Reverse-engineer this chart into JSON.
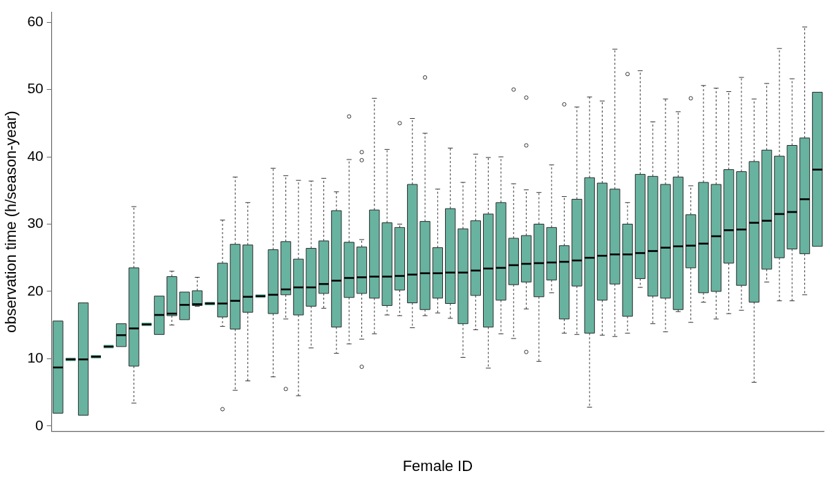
{
  "chart_data": {
    "type": "box",
    "xlabel": "Female ID",
    "ylabel": "observation time (h/season-year)",
    "color": "#67b3a0",
    "tick_labels": "y",
    "ylim": [
      -0.8,
      61.5
    ],
    "yticks": [
      0,
      10,
      20,
      30,
      40,
      50,
      60
    ],
    "categories": [
      null,
      null,
      null,
      null,
      null,
      null,
      null,
      null,
      null,
      null,
      null,
      null,
      null,
      null,
      null,
      null,
      null,
      null,
      null,
      null,
      null,
      null,
      null,
      null,
      null,
      null,
      null,
      null,
      null,
      null,
      null,
      null,
      null,
      null,
      null,
      null,
      null,
      null,
      null,
      null,
      null,
      null,
      null,
      null,
      null,
      null,
      null,
      null,
      null,
      null,
      null,
      null,
      null,
      null,
      null,
      null,
      null,
      null,
      null,
      null,
      null
    ],
    "boxes": [
      {
        "low": 1.9,
        "q1": 1.9,
        "median": 8.7,
        "q3": 15.6,
        "high": 15.6
      },
      {
        "low": 9.9,
        "q1": 9.9,
        "median": 9.9,
        "q3": 9.9,
        "high": 9.9
      },
      {
        "low": 1.6,
        "q1": 1.6,
        "median": 9.9,
        "q3": 18.3,
        "high": 18.3
      },
      {
        "low": 10.3,
        "q1": 10.3,
        "median": 10.3,
        "q3": 10.3,
        "high": 10.3
      },
      {
        "low": 11.8,
        "q1": 11.8,
        "median": 11.8,
        "q3": 11.8,
        "high": 11.8
      },
      {
        "low": 11.8,
        "q1": 11.8,
        "median": 13.5,
        "q3": 15.2,
        "high": 15.2
      },
      {
        "low": 3.4,
        "q1": 8.9,
        "median": 14.5,
        "q3": 23.5,
        "high": 32.6
      },
      {
        "low": 15.1,
        "q1": 15.1,
        "median": 15.1,
        "q3": 15.1,
        "high": 15.1
      },
      {
        "low": 13.6,
        "q1": 13.6,
        "median": 16.5,
        "q3": 19.3,
        "high": 19.3
      },
      {
        "low": 15.0,
        "q1": 16.4,
        "median": 16.7,
        "q3": 22.2,
        "high": 23.0
      },
      {
        "low": 15.8,
        "q1": 15.8,
        "median": 18.0,
        "q3": 19.9,
        "high": 19.9
      },
      {
        "low": 17.8,
        "q1": 17.9,
        "median": 18.1,
        "q3": 20.1,
        "high": 22.1
      },
      {
        "low": 18.2,
        "q1": 18.2,
        "median": 18.2,
        "q3": 18.2,
        "high": 18.2
      },
      {
        "low": 14.8,
        "q1": 16.2,
        "median": 18.2,
        "q3": 24.2,
        "high": 30.6,
        "outliers": [
          2.5
        ]
      },
      {
        "low": 5.3,
        "q1": 14.4,
        "median": 18.6,
        "q3": 27.0,
        "high": 37.0
      },
      {
        "low": 6.7,
        "q1": 16.9,
        "median": 19.2,
        "q3": 26.9,
        "high": 33.2
      },
      {
        "low": 19.3,
        "q1": 19.3,
        "median": 19.3,
        "q3": 19.3,
        "high": 19.3
      },
      {
        "low": 7.3,
        "q1": 16.7,
        "median": 19.5,
        "q3": 26.2,
        "high": 38.3
      },
      {
        "low": 15.9,
        "q1": 19.5,
        "median": 20.3,
        "q3": 27.4,
        "high": 37.2,
        "outliers": [
          5.5
        ]
      },
      {
        "low": 4.5,
        "q1": 16.5,
        "median": 20.6,
        "q3": 24.8,
        "high": 36.5
      },
      {
        "low": 11.6,
        "q1": 17.8,
        "median": 20.6,
        "q3": 26.4,
        "high": 36.4
      },
      {
        "low": 17.5,
        "q1": 19.7,
        "median": 21.1,
        "q3": 27.5,
        "high": 36.8
      },
      {
        "low": 10.8,
        "q1": 14.7,
        "median": 21.6,
        "q3": 32.0,
        "high": 34.8
      },
      {
        "low": 12.2,
        "q1": 19.1,
        "median": 22.0,
        "q3": 27.3,
        "high": 39.6,
        "outliers": [
          46.0
        ]
      },
      {
        "low": 12.9,
        "q1": 19.7,
        "median": 22.1,
        "q3": 26.6,
        "high": 27.7,
        "outliers": [
          40.7,
          39.5,
          8.8
        ]
      },
      {
        "low": 13.7,
        "q1": 19.0,
        "median": 22.2,
        "q3": 32.1,
        "high": 48.7
      },
      {
        "low": 16.5,
        "q1": 17.9,
        "median": 22.2,
        "q3": 30.2,
        "high": 41.1
      },
      {
        "low": 16.4,
        "q1": 20.2,
        "median": 22.3,
        "q3": 29.5,
        "high": 30.0,
        "outliers": [
          45.0
        ]
      },
      {
        "low": 14.6,
        "q1": 18.3,
        "median": 22.5,
        "q3": 35.9,
        "high": 45.7
      },
      {
        "low": 16.4,
        "q1": 17.3,
        "median": 22.7,
        "q3": 30.4,
        "high": 43.5,
        "outliers": [
          51.8
        ]
      },
      {
        "low": 16.8,
        "q1": 19.0,
        "median": 22.7,
        "q3": 26.5,
        "high": 35.2
      },
      {
        "low": 16.0,
        "q1": 18.2,
        "median": 22.8,
        "q3": 32.3,
        "high": 41.3
      },
      {
        "low": 10.2,
        "q1": 15.2,
        "median": 22.8,
        "q3": 29.3,
        "high": 36.2
      },
      {
        "low": 14.3,
        "q1": 19.4,
        "median": 23.1,
        "q3": 30.5,
        "high": 40.4
      },
      {
        "low": 8.6,
        "q1": 14.7,
        "median": 23.4,
        "q3": 31.5,
        "high": 39.9
      },
      {
        "low": 13.7,
        "q1": 18.7,
        "median": 23.5,
        "q3": 33.2,
        "high": 40.0
      },
      {
        "low": 13.0,
        "q1": 21.0,
        "median": 23.9,
        "q3": 27.9,
        "high": 36.0,
        "outliers": [
          50.0
        ]
      },
      {
        "low": 17.4,
        "q1": 21.4,
        "median": 24.1,
        "q3": 28.3,
        "high": 35.1,
        "outliers": [
          48.8,
          41.7,
          11.0
        ]
      },
      {
        "low": 9.6,
        "q1": 19.2,
        "median": 24.2,
        "q3": 30.0,
        "high": 34.7
      },
      {
        "low": 19.8,
        "q1": 21.7,
        "median": 24.3,
        "q3": 29.5,
        "high": 38.8
      },
      {
        "low": 13.8,
        "q1": 15.9,
        "median": 24.4,
        "q3": 26.8,
        "high": 34.1,
        "outliers": [
          47.8
        ]
      },
      {
        "low": 13.6,
        "q1": 20.8,
        "median": 24.6,
        "q3": 33.7,
        "high": 47.4
      },
      {
        "low": 2.8,
        "q1": 13.8,
        "median": 25.0,
        "q3": 36.9,
        "high": 48.9
      },
      {
        "low": 13.5,
        "q1": 18.7,
        "median": 25.3,
        "q3": 36.1,
        "high": 48.3
      },
      {
        "low": 13.3,
        "q1": 21.1,
        "median": 25.5,
        "q3": 35.2,
        "high": 56.0
      },
      {
        "low": 13.8,
        "q1": 16.3,
        "median": 25.5,
        "q3": 30.0,
        "high": 33.2,
        "outliers": [
          52.3
        ]
      },
      {
        "low": 20.6,
        "q1": 21.9,
        "median": 25.7,
        "q3": 37.4,
        "high": 52.8
      },
      {
        "low": 15.2,
        "q1": 19.3,
        "median": 26.0,
        "q3": 37.1,
        "high": 45.2
      },
      {
        "low": 14.0,
        "q1": 19.0,
        "median": 26.5,
        "q3": 35.9,
        "high": 48.6
      },
      {
        "low": 17.0,
        "q1": 17.3,
        "median": 26.7,
        "q3": 37.0,
        "high": 46.7
      },
      {
        "low": 15.4,
        "q1": 23.5,
        "median": 26.8,
        "q3": 31.4,
        "high": 35.7,
        "outliers": [
          48.7
        ]
      },
      {
        "low": 18.4,
        "q1": 19.8,
        "median": 27.1,
        "q3": 36.2,
        "high": 50.6
      },
      {
        "low": 15.9,
        "q1": 20.0,
        "median": 28.2,
        "q3": 35.9,
        "high": 50.2
      },
      {
        "low": 16.7,
        "q1": 24.2,
        "median": 29.1,
        "q3": 38.1,
        "high": 49.7
      },
      {
        "low": 17.2,
        "q1": 20.9,
        "median": 29.2,
        "q3": 37.8,
        "high": 51.8
      },
      {
        "low": 6.5,
        "q1": 18.4,
        "median": 30.2,
        "q3": 39.3,
        "high": 48.6
      },
      {
        "low": 21.4,
        "q1": 23.3,
        "median": 30.5,
        "q3": 41.0,
        "high": 50.9
      },
      {
        "low": 18.6,
        "q1": 25.0,
        "median": 31.5,
        "q3": 40.1,
        "high": 56.1
      },
      {
        "low": 18.6,
        "q1": 26.3,
        "median": 31.8,
        "q3": 41.7,
        "high": 51.6
      },
      {
        "low": 19.5,
        "q1": 25.6,
        "median": 33.7,
        "q3": 42.8,
        "high": 59.3
      },
      {
        "low": 26.7,
        "q1": 26.7,
        "median": 38.1,
        "q3": 49.6,
        "high": 49.6
      }
    ]
  }
}
